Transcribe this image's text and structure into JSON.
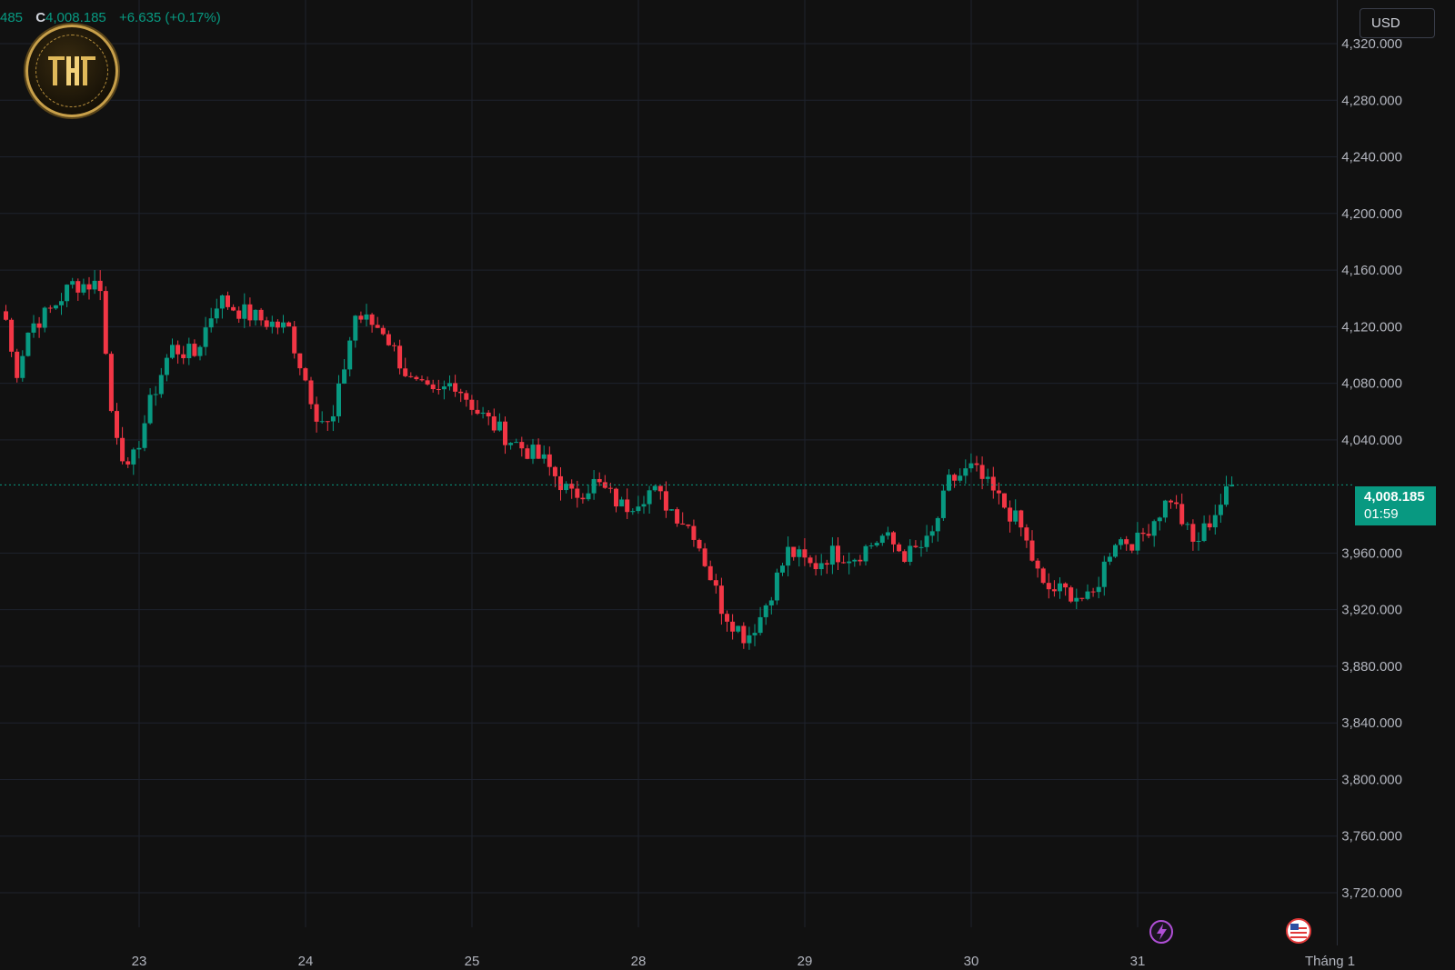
{
  "header": {
    "open_fragment": "485",
    "close_prefix": "C",
    "close_value": "4,008.185",
    "change": "+6.635 (+0.17%)"
  },
  "currency_button": "USD",
  "price_tag": {
    "price": "4,008.185",
    "countdown": "01:59"
  },
  "event_icons": [
    {
      "name": "lightning-icon",
      "label": ""
    },
    {
      "name": "us-flag-icon",
      "label": ""
    }
  ],
  "colors": {
    "background": "#111111",
    "up": "#089981",
    "down": "#f23645",
    "grid": "#1e222d",
    "axis_text": "#b2b5be"
  },
  "chart_data": {
    "type": "candlestick",
    "title": "",
    "xlabel": "",
    "ylabel": "",
    "ylim": [
      3690,
      4330
    ],
    "y_ticks": [
      "4,320.000",
      "4,280.000",
      "4,240.000",
      "4,200.000",
      "4,160.000",
      "4,120.000",
      "4,080.000",
      "4,040.000",
      "3,960.000",
      "3,920.000",
      "3,880.000",
      "3,840.000",
      "3,800.000",
      "3,760.000",
      "3,720.000"
    ],
    "y_tick_values": [
      4320,
      4280,
      4240,
      4200,
      4160,
      4120,
      4080,
      4040,
      3960,
      3920,
      3880,
      3840,
      3800,
      3760,
      3720
    ],
    "x_tick_labels": [
      "23",
      "24",
      "25",
      "28",
      "29",
      "30",
      "31",
      "Tháng 1"
    ],
    "grid": true,
    "last_price": 4008.185,
    "bars_per_day": 30,
    "day_segments": [
      {
        "label": "22",
        "path": [
          [
            0,
            4125
          ],
          [
            0.1,
            4085
          ],
          [
            0.25,
            4120
          ],
          [
            0.45,
            4130
          ],
          [
            0.7,
            4150
          ],
          [
            1,
            4150
          ]
        ]
      },
      {
        "label": "23",
        "path": [
          [
            0,
            4150
          ],
          [
            0.1,
            4065
          ],
          [
            0.3,
            4015
          ],
          [
            0.55,
            4070
          ],
          [
            0.75,
            4105
          ],
          [
            1,
            4100
          ]
        ]
      },
      {
        "label": "24",
        "path": [
          [
            0,
            4100
          ],
          [
            0.25,
            4140
          ],
          [
            0.45,
            4132
          ],
          [
            0.7,
            4125
          ],
          [
            1,
            4118
          ]
        ]
      },
      {
        "label": "25",
        "path": [
          [
            0,
            4118
          ],
          [
            0.3,
            4058
          ],
          [
            0.45,
            4048
          ],
          [
            0.7,
            4128
          ],
          [
            1,
            4118
          ]
        ]
      },
      {
        "label": "26",
        "path": [
          [
            0,
            4118
          ],
          [
            0.3,
            4080
          ],
          [
            0.55,
            4070
          ],
          [
            0.75,
            4082
          ],
          [
            1,
            4060
          ]
        ]
      },
      {
        "label": "27",
        "path": [
          [
            0,
            4060
          ],
          [
            0.35,
            4040
          ],
          [
            0.7,
            4025
          ],
          [
            1,
            4000
          ]
        ]
      },
      {
        "label": "28",
        "path": [
          [
            0,
            4000
          ],
          [
            0.25,
            4010
          ],
          [
            0.55,
            3992
          ],
          [
            0.85,
            4005
          ],
          [
            1,
            3995
          ]
        ]
      },
      {
        "label": "28b",
        "path": [
          [
            0,
            3995
          ],
          [
            0.3,
            3975
          ],
          [
            0.6,
            3920
          ],
          [
            0.85,
            3900
          ],
          [
            1,
            3915
          ]
        ]
      },
      {
        "label": "29",
        "path": [
          [
            0,
            3915
          ],
          [
            0.3,
            3962
          ],
          [
            0.55,
            3950
          ],
          [
            0.75,
            3960
          ],
          [
            1,
            3958
          ]
        ]
      },
      {
        "label": "29b",
        "path": [
          [
            0,
            3958
          ],
          [
            0.3,
            3972
          ],
          [
            0.55,
            3958
          ],
          [
            0.8,
            3968
          ],
          [
            1,
            4010
          ]
        ]
      },
      {
        "label": "30",
        "path": [
          [
            0,
            4010
          ],
          [
            0.25,
            4020
          ],
          [
            0.5,
            4000
          ],
          [
            0.75,
            3980
          ],
          [
            1,
            3935
          ]
        ]
      },
      {
        "label": "30b",
        "path": [
          [
            0,
            3935
          ],
          [
            0.3,
            3932
          ],
          [
            0.5,
            3925
          ],
          [
            0.75,
            3970
          ],
          [
            1,
            3968
          ]
        ]
      },
      {
        "label": "31",
        "path": [
          [
            0,
            3968
          ],
          [
            0.35,
            4000
          ],
          [
            0.6,
            3965
          ],
          [
            1,
            4008
          ]
        ]
      }
    ]
  }
}
